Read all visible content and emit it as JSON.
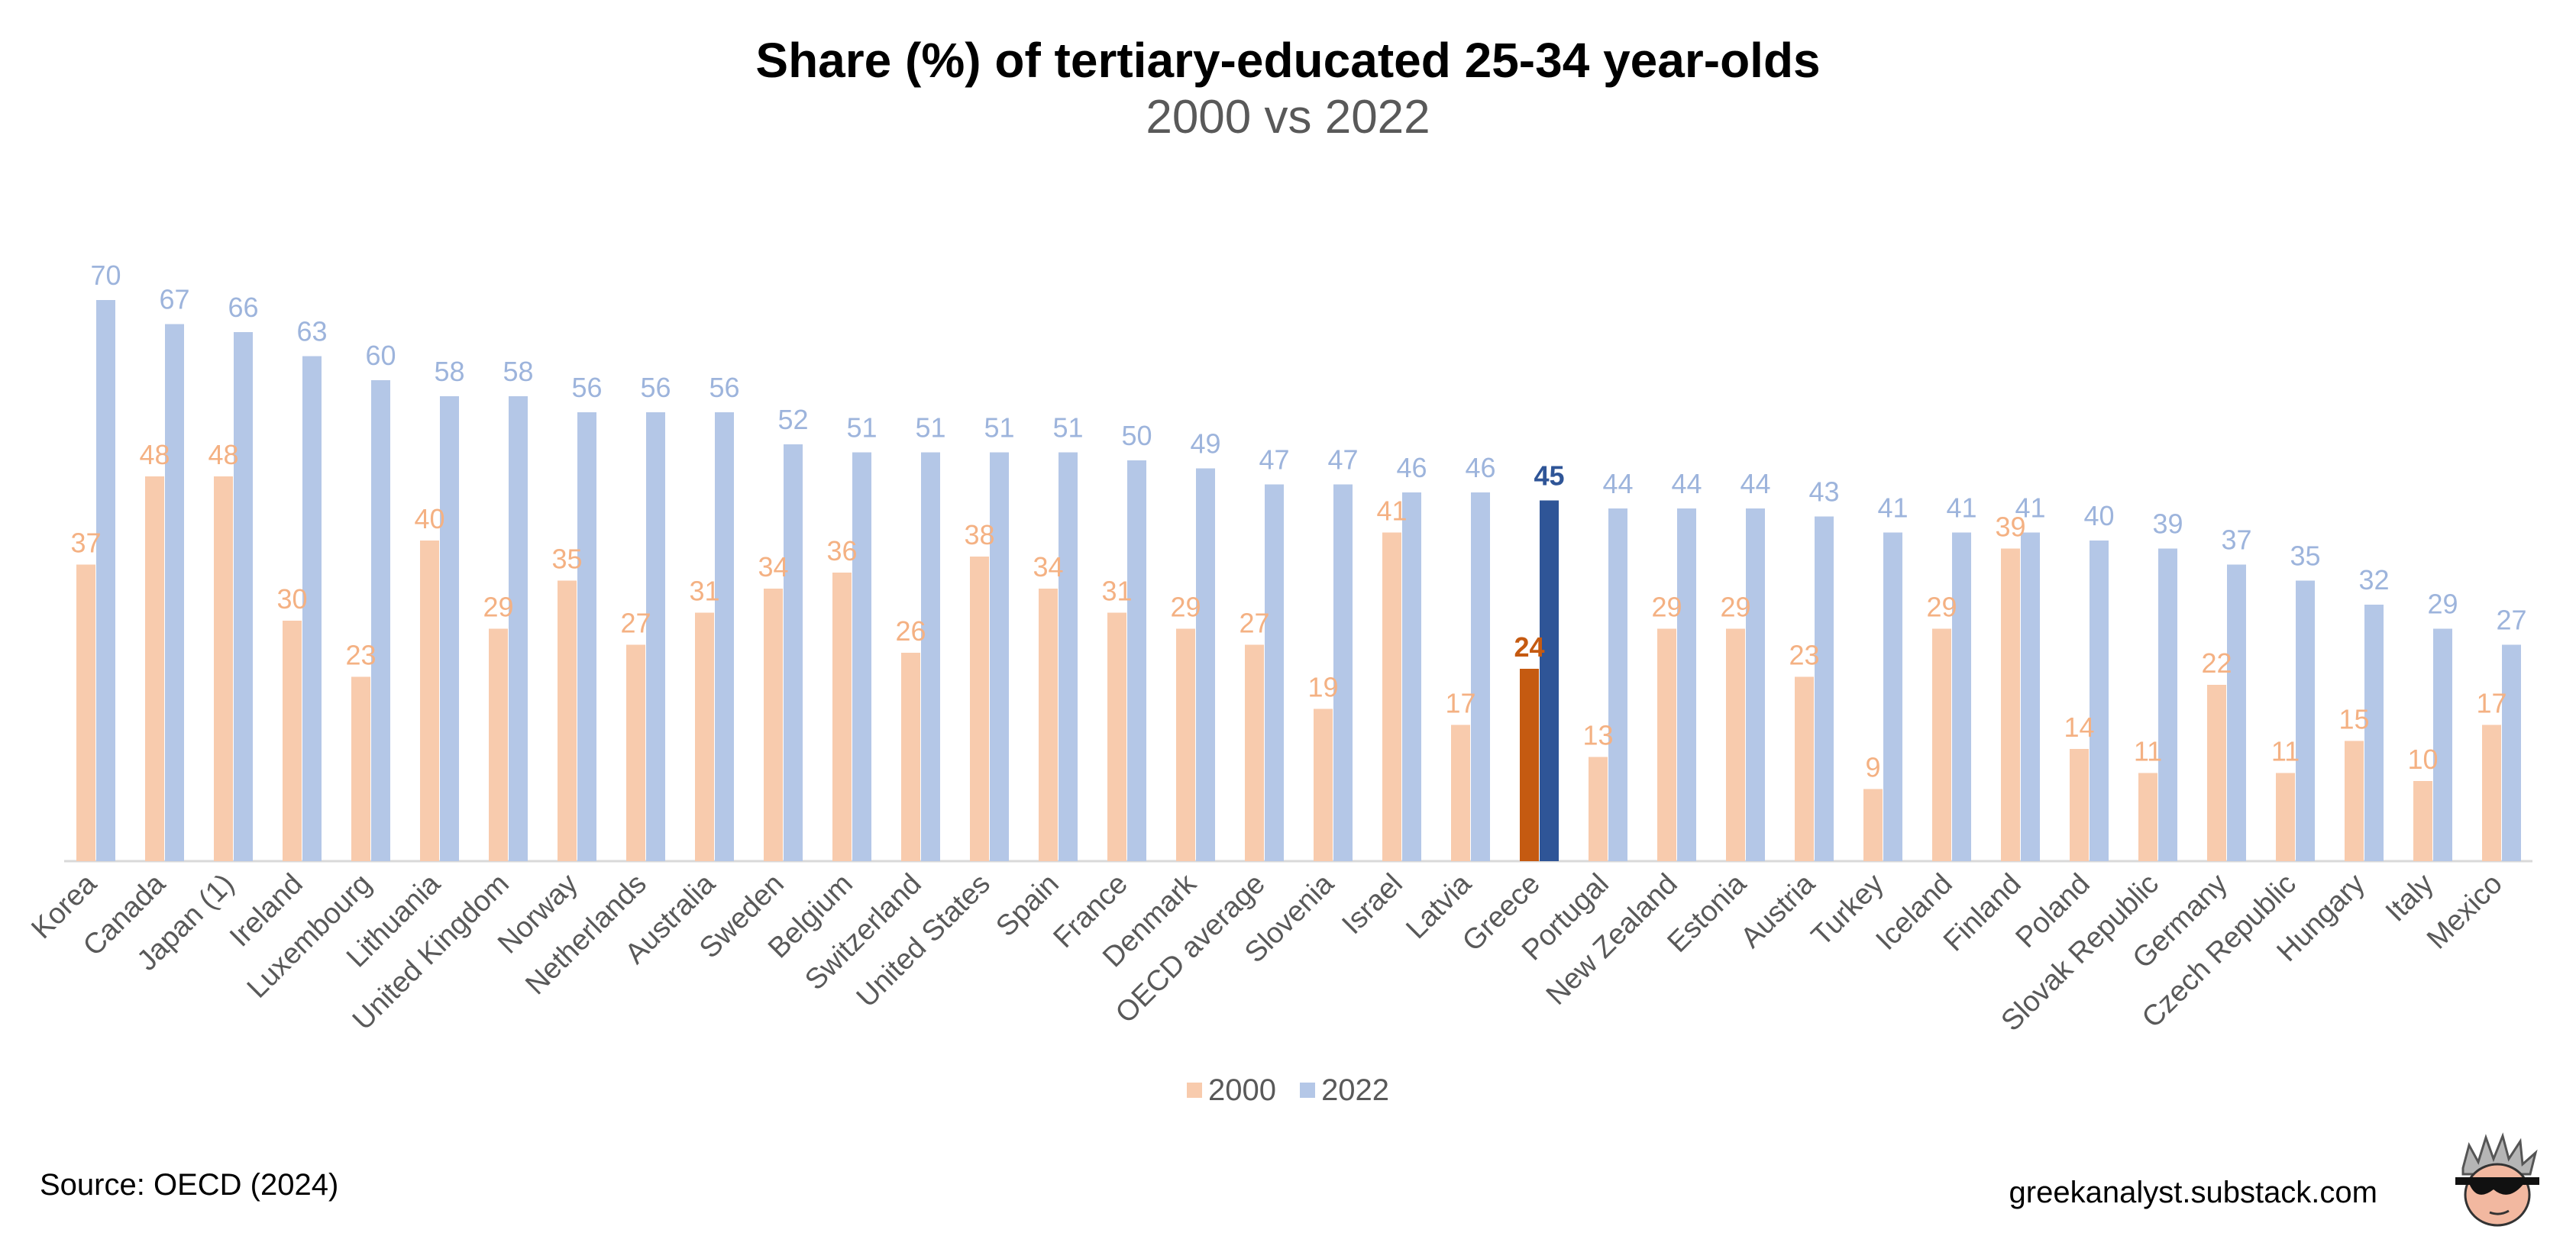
{
  "title": "Share (%) of tertiary-educated 25-34 year-olds",
  "subtitle": "2000 vs 2022",
  "source": "Source: OECD (2024)",
  "site": "greekanalyst.substack.com",
  "colors": {
    "s2000": "#F8CBAD",
    "s2022": "#B4C7E7",
    "s2000_label": "#F4B183",
    "s2022_label": "#9DB4DC",
    "highlight2000": "#C55A11",
    "highlight2022": "#2F5597",
    "axis": "#D9D9D9",
    "category_text": "#595959"
  },
  "chart_data": {
    "type": "bar",
    "title": "Share (%) of tertiary-educated 25-34 year-olds",
    "subtitle": "2000 vs 2022",
    "xlabel": "",
    "ylabel": "",
    "ylim": [
      0,
      72
    ],
    "grid": false,
    "legend_position": "bottom",
    "highlight_category": "Greece",
    "categories": [
      "Korea",
      "Canada",
      "Japan (1)",
      "Ireland",
      "Luxembourg",
      "Lithuania",
      "United Kingdom",
      "Norway",
      "Netherlands",
      "Australia",
      "Sweden",
      "Belgium",
      "Switzerland",
      "United States",
      "Spain",
      "France",
      "Denmark",
      "OECD average",
      "Slovenia",
      "Israel",
      "Latvia",
      "Greece",
      "Portugal",
      "New Zealand",
      "Estonia",
      "Austria",
      "Turkey",
      "Iceland",
      "Finland",
      "Poland",
      "Slovak Republic",
      "Germany",
      "Czech Republic",
      "Hungary",
      "Italy",
      "Mexico"
    ],
    "series": [
      {
        "name": "2000",
        "values": [
          37,
          48,
          48,
          30,
          23,
          40,
          29,
          35,
          27,
          31,
          34,
          36,
          26,
          38,
          34,
          31,
          29,
          27,
          19,
          41,
          17,
          24,
          13,
          29,
          29,
          23,
          9,
          29,
          39,
          14,
          11,
          22,
          11,
          15,
          10,
          17
        ]
      },
      {
        "name": "2022",
        "values": [
          70,
          67,
          66,
          63,
          60,
          58,
          58,
          56,
          56,
          56,
          52,
          51,
          51,
          51,
          51,
          50,
          49,
          47,
          47,
          46,
          46,
          45,
          44,
          44,
          44,
          43,
          41,
          41,
          41,
          40,
          39,
          37,
          35,
          32,
          29,
          27
        ]
      }
    ]
  }
}
